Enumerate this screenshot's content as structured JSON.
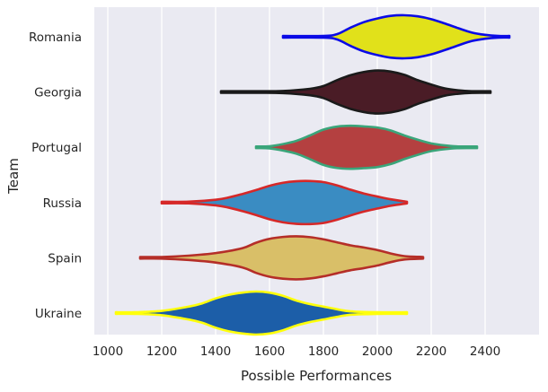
{
  "chart_data": {
    "type": "violin",
    "title": "",
    "xlabel": "Possible Performances",
    "ylabel": "Team",
    "xlim": [
      950,
      2600
    ],
    "xticks": [
      1000,
      1200,
      1400,
      1600,
      1800,
      2000,
      2200,
      2400
    ],
    "grid": "vertical",
    "background": "#EAEAF2",
    "categories": [
      "Romania",
      "Georgia",
      "Portugal",
      "Russia",
      "Spain",
      "Ukraine"
    ],
    "series": [
      {
        "category": "Romania",
        "fill": "#E1E11A",
        "edge": "#0A0AE6",
        "min": 1650,
        "max": 2490,
        "profile": [
          [
            1650,
            0.01
          ],
          [
            1800,
            0.03
          ],
          [
            1850,
            0.12
          ],
          [
            1900,
            0.42
          ],
          [
            1950,
            0.68
          ],
          [
            2000,
            0.85
          ],
          [
            2050,
            0.97
          ],
          [
            2100,
            1.0
          ],
          [
            2150,
            0.95
          ],
          [
            2200,
            0.82
          ],
          [
            2250,
            0.62
          ],
          [
            2300,
            0.4
          ],
          [
            2350,
            0.2
          ],
          [
            2400,
            0.09
          ],
          [
            2450,
            0.04
          ],
          [
            2490,
            0.01
          ]
        ]
      },
      {
        "category": "Georgia",
        "fill": "#4A1C26",
        "edge": "#1A1A1A",
        "min": 1420,
        "max": 2420,
        "profile": [
          [
            1420,
            0.005
          ],
          [
            1550,
            0.015
          ],
          [
            1650,
            0.05
          ],
          [
            1750,
            0.15
          ],
          [
            1800,
            0.28
          ],
          [
            1850,
            0.55
          ],
          [
            1900,
            0.78
          ],
          [
            1950,
            0.93
          ],
          [
            2000,
            1.0
          ],
          [
            2050,
            0.95
          ],
          [
            2100,
            0.8
          ],
          [
            2150,
            0.55
          ],
          [
            2200,
            0.35
          ],
          [
            2250,
            0.17
          ],
          [
            2300,
            0.08
          ],
          [
            2350,
            0.04
          ],
          [
            2420,
            0.01
          ]
        ]
      },
      {
        "category": "Portugal",
        "fill": "#B44040",
        "edge": "#3AA57A",
        "min": 1550,
        "max": 2370,
        "profile": [
          [
            1550,
            0.005
          ],
          [
            1600,
            0.05
          ],
          [
            1650,
            0.15
          ],
          [
            1700,
            0.3
          ],
          [
            1750,
            0.55
          ],
          [
            1800,
            0.82
          ],
          [
            1850,
            0.96
          ],
          [
            1900,
            1.0
          ],
          [
            1950,
            0.97
          ],
          [
            2000,
            0.92
          ],
          [
            2050,
            0.78
          ],
          [
            2100,
            0.55
          ],
          [
            2150,
            0.35
          ],
          [
            2200,
            0.18
          ],
          [
            2250,
            0.09
          ],
          [
            2300,
            0.04
          ],
          [
            2370,
            0.005
          ]
        ]
      },
      {
        "category": "Russia",
        "fill": "#3A8CC2",
        "edge": "#D62828",
        "min": 1200,
        "max": 2110,
        "profile": [
          [
            1200,
            0.005
          ],
          [
            1300,
            0.04
          ],
          [
            1400,
            0.13
          ],
          [
            1450,
            0.24
          ],
          [
            1500,
            0.4
          ],
          [
            1550,
            0.58
          ],
          [
            1600,
            0.78
          ],
          [
            1650,
            0.92
          ],
          [
            1700,
            0.99
          ],
          [
            1750,
            1.0
          ],
          [
            1800,
            0.95
          ],
          [
            1850,
            0.8
          ],
          [
            1900,
            0.6
          ],
          [
            1950,
            0.42
          ],
          [
            2000,
            0.28
          ],
          [
            2050,
            0.15
          ],
          [
            2110,
            0.005
          ]
        ]
      },
      {
        "category": "Spain",
        "fill": "#D9BF68",
        "edge": "#B52E28",
        "min": 1120,
        "max": 2170,
        "profile": [
          [
            1120,
            0.005
          ],
          [
            1200,
            0.03
          ],
          [
            1300,
            0.1
          ],
          [
            1400,
            0.22
          ],
          [
            1500,
            0.45
          ],
          [
            1550,
            0.7
          ],
          [
            1600,
            0.88
          ],
          [
            1650,
            0.97
          ],
          [
            1700,
            1.0
          ],
          [
            1750,
            0.96
          ],
          [
            1800,
            0.86
          ],
          [
            1850,
            0.72
          ],
          [
            1900,
            0.58
          ],
          [
            1950,
            0.48
          ],
          [
            2000,
            0.36
          ],
          [
            2050,
            0.2
          ],
          [
            2100,
            0.08
          ],
          [
            2170,
            0.005
          ]
        ]
      },
      {
        "category": "Ukraine",
        "fill": "#1C5EA8",
        "edge": "#FFFF0A",
        "min": 1030,
        "max": 2110,
        "profile": [
          [
            1030,
            0.005
          ],
          [
            1100,
            0.03
          ],
          [
            1200,
            0.1
          ],
          [
            1300,
            0.3
          ],
          [
            1350,
            0.45
          ],
          [
            1400,
            0.68
          ],
          [
            1450,
            0.85
          ],
          [
            1500,
            0.95
          ],
          [
            1550,
            1.0
          ],
          [
            1600,
            0.95
          ],
          [
            1650,
            0.8
          ],
          [
            1700,
            0.58
          ],
          [
            1750,
            0.42
          ],
          [
            1800,
            0.3
          ],
          [
            1850,
            0.18
          ],
          [
            1900,
            0.08
          ],
          [
            2000,
            0.02
          ],
          [
            2110,
            0.005
          ]
        ]
      }
    ]
  }
}
